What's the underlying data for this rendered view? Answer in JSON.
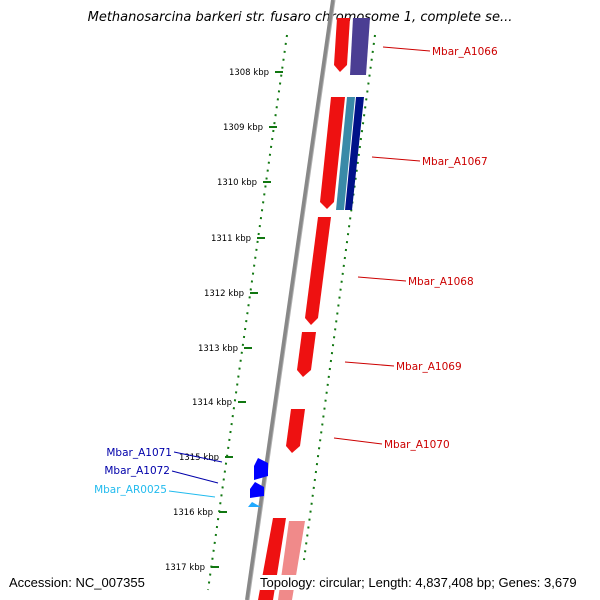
{
  "title": "Methanosarcina barkeri str. fusaro chromosome 1, complete se...",
  "footer": {
    "accession": "Accession: NC_007355",
    "summary": "Topology: circular; Length: 4,837,408 bp; Genes: 3,679"
  },
  "colors": {
    "backbone": "#808080",
    "forward_gene": "#ff0000",
    "forward_gene_light": "#f08a8a",
    "reverse_gene": "#0000ff",
    "rna_gene": "#22aaff",
    "label_forward": "#cc0000",
    "label_reverse": "#0000aa",
    "label_rna": "#22bbee",
    "tick": "#117711"
  },
  "ticks": [
    {
      "label": "1308 kbp"
    },
    {
      "label": "1309 kbp"
    },
    {
      "label": "1310 kbp"
    },
    {
      "label": "1311 kbp"
    },
    {
      "label": "1312 kbp"
    },
    {
      "label": "1313 kbp"
    },
    {
      "label": "1314 kbp"
    },
    {
      "label": "1315 kbp"
    },
    {
      "label": "1316 kbp"
    },
    {
      "label": "1317 kbp"
    }
  ],
  "gene_labels": [
    {
      "name": "Mbar_A1066",
      "strand": "forward"
    },
    {
      "name": "Mbar_A1067",
      "strand": "forward"
    },
    {
      "name": "Mbar_A1068",
      "strand": "forward"
    },
    {
      "name": "Mbar_A1069",
      "strand": "forward"
    },
    {
      "name": "Mbar_A1070",
      "strand": "forward"
    },
    {
      "name": "Mbar_A1071",
      "strand": "reverse"
    },
    {
      "name": "Mbar_A1072",
      "strand": "reverse"
    },
    {
      "name": "Mbar_AR0025",
      "strand": "rna"
    }
  ]
}
